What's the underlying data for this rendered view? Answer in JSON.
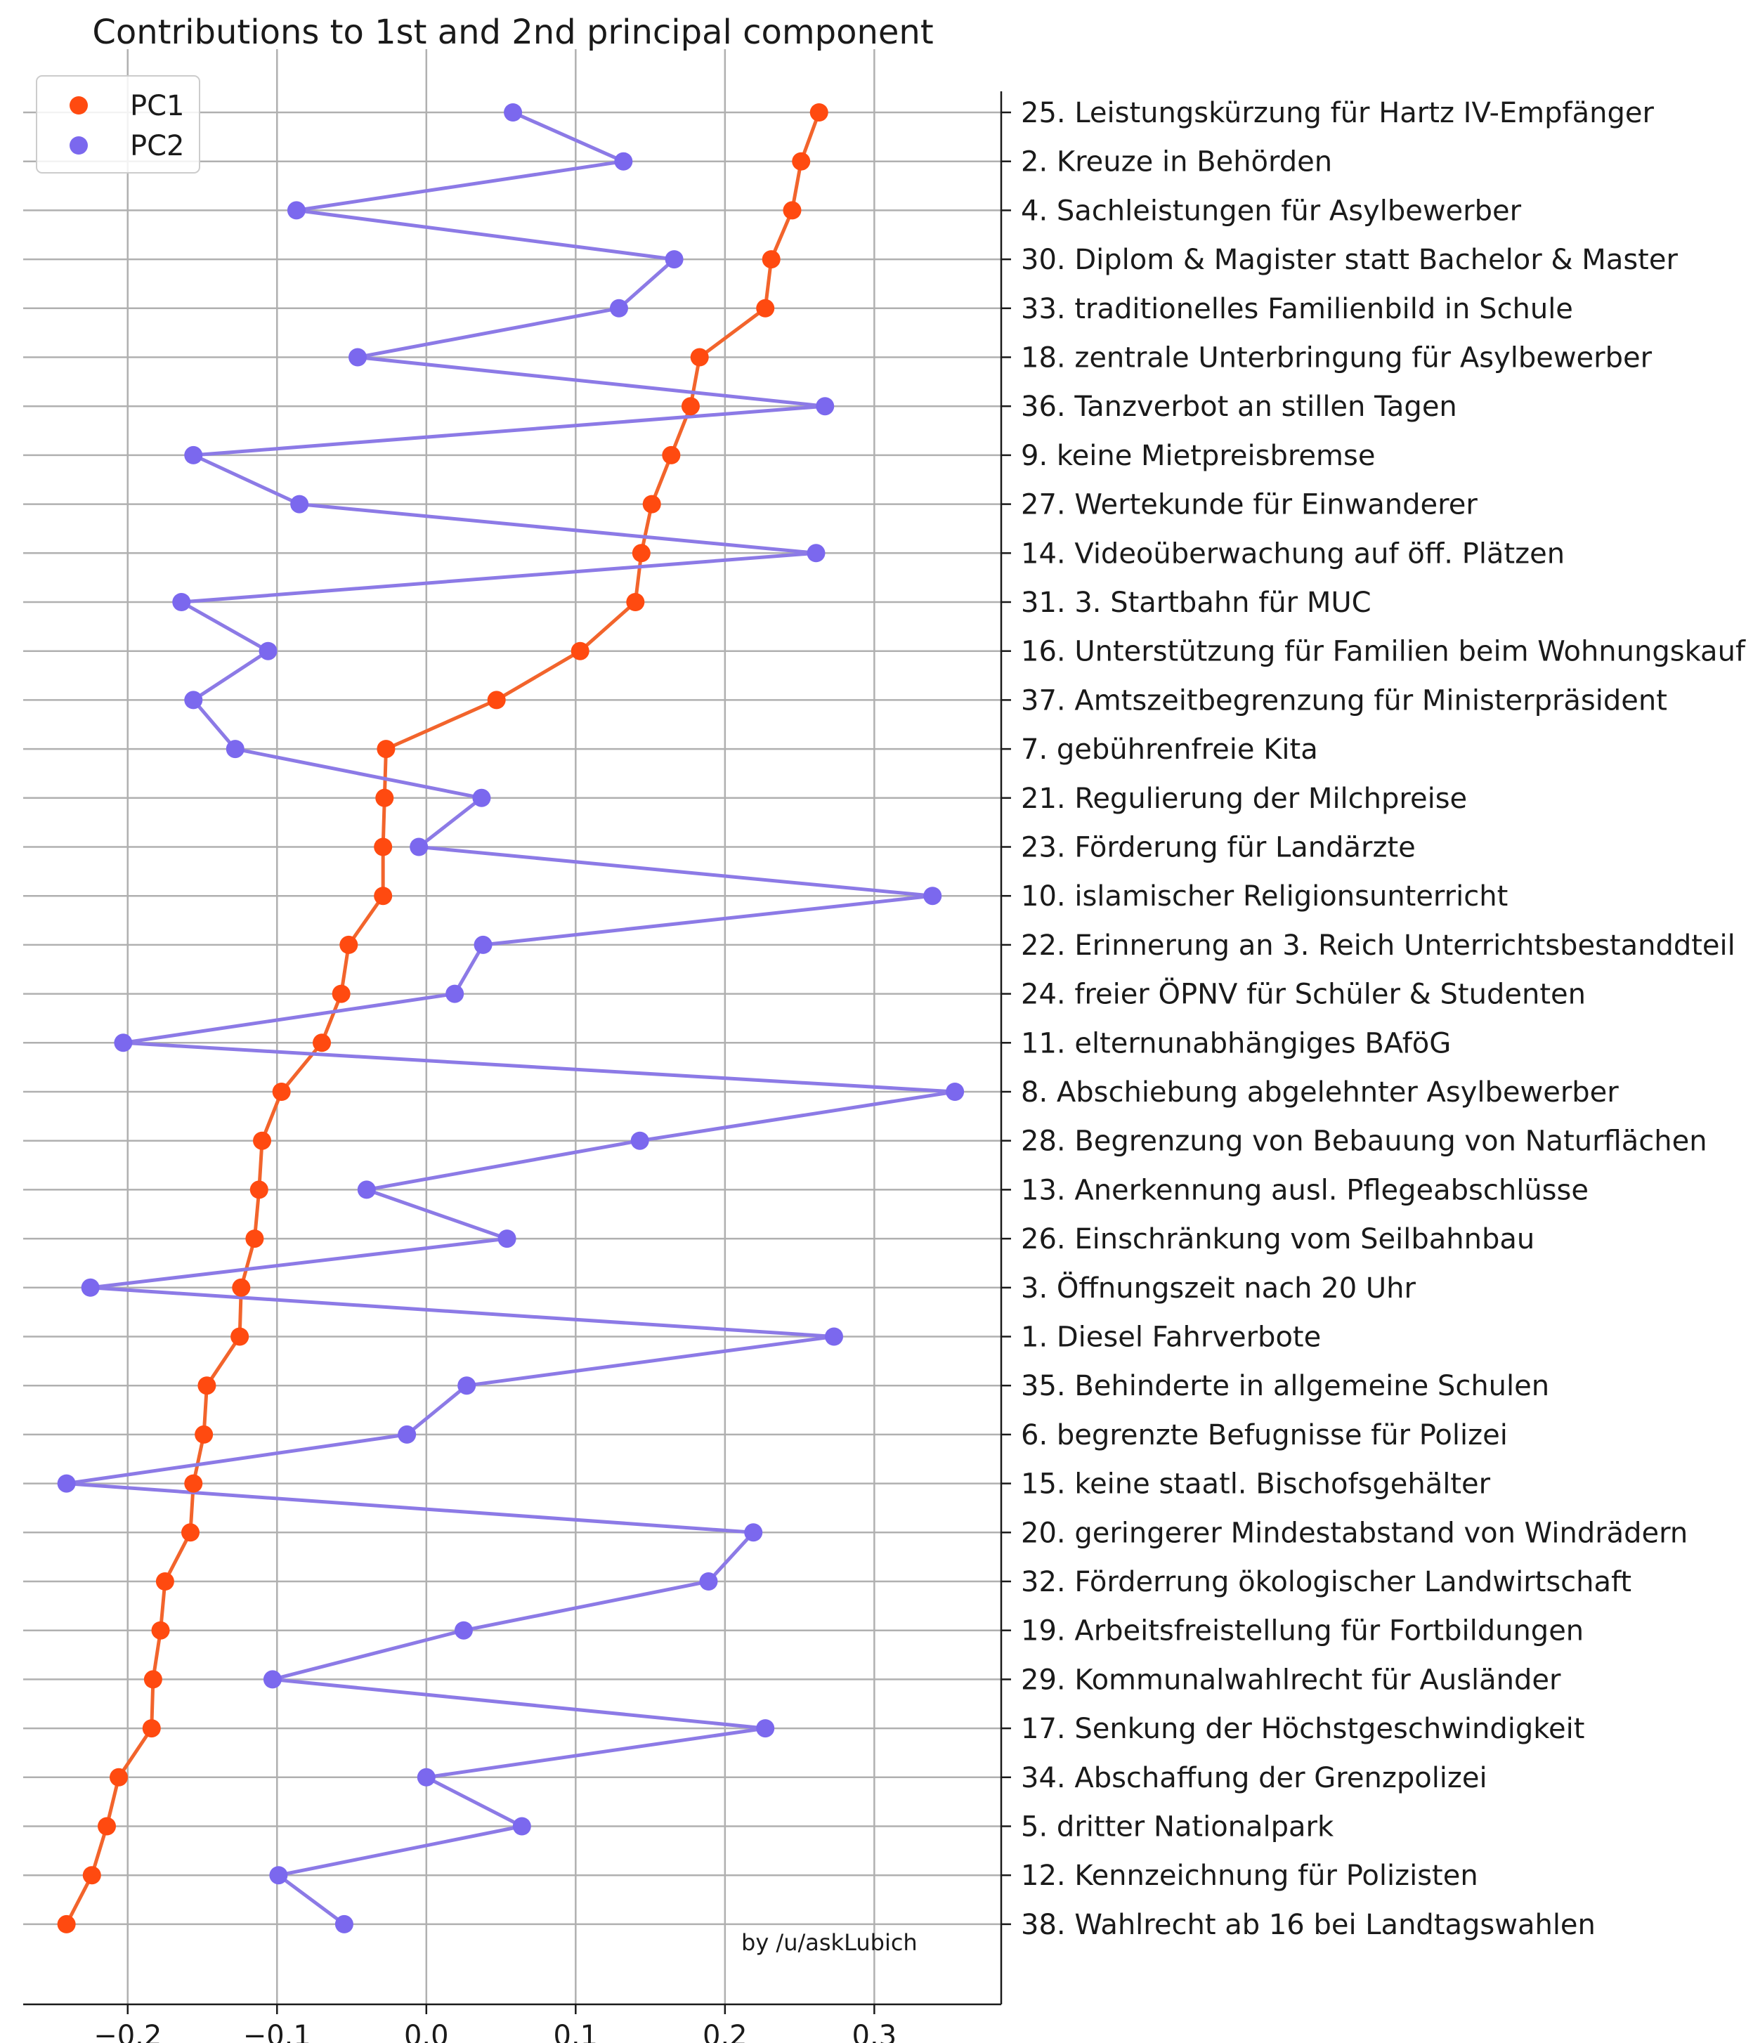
{
  "chart_data": {
    "type": "line",
    "title": "Contributions to 1st and 2nd principal component",
    "xlabel": "",
    "ylabel": "",
    "xlim": [
      -0.27,
      0.385
    ],
    "xticks": [
      -0.2,
      -0.1,
      0.0,
      0.1,
      0.2,
      0.3
    ],
    "xtick_labels": [
      "−0.2",
      "−0.1",
      "0.0",
      "0.1",
      "0.2",
      "0.3"
    ],
    "grid": true,
    "legend_position": "top-left",
    "annotation": "by /u/askLubich",
    "categories": [
      "25. Leistungskürzung für Hartz IV-Empfänger",
      "2. Kreuze in Behörden",
      "4. Sachleistungen für Asylbewerber",
      "30. Diplom & Magister statt Bachelor & Master",
      "33. traditionelles Familienbild in Schule",
      "18. zentrale Unterbringung für Asylbewerber",
      "36. Tanzverbot an stillen Tagen",
      "9. keine Mietpreisbremse",
      "27. Wertekunde für Einwanderer",
      "14. Videoüberwachung auf öff. Plätzen",
      "31. 3. Startbahn für MUC",
      "16. Unterstützung für Familien beim Wohnungskauf",
      "37. Amtszeitbegrenzung für Ministerpräsident",
      "7. gebührenfreie Kita",
      "21. Regulierung der Milchpreise",
      "23. Förderung für Landärzte",
      "10. islamischer Religionsunterricht",
      "22. Erinnerung an 3. Reich Unterrichtsbestanddteil",
      "24. freier ÖPNV für Schüler & Studenten",
      "11. elternunabhängiges BAföG",
      "8. Abschiebung abgelehnter Asylbewerber",
      "28. Begrenzung von Bebauung von Naturflächen",
      "13. Anerkennung ausl. Pflegeabschlüsse",
      "26. Einschränkung vom Seilbahnbau",
      "3. Öffnungszeit nach 20 Uhr",
      "1. Diesel Fahrverbote",
      "35. Behinderte in allgemeine Schulen",
      "6. begrenzte Befugnisse für Polizei",
      "15. keine staatl. Bischofsgehälter",
      "20. geringerer Mindestabstand von Windrädern",
      "32. Förderrung ökologischer Landwirtschaft",
      "19. Arbeitsfreistellung für Fortbildungen",
      "29. Kommunalwahlrecht für Ausländer",
      "17. Senkung der Höchstgeschwindigkeit",
      "34. Abschaffung der Grenzpolizei",
      "5. dritter Nationalpark",
      "12. Kennzeichnung für Polizisten",
      "38. Wahlrecht ab 16 bei Landtagswahlen"
    ],
    "series": [
      {
        "name": "PC1",
        "color": "#ff4a10",
        "line_color": "#f2642c",
        "values": [
          0.263,
          0.251,
          0.245,
          0.231,
          0.227,
          0.183,
          0.177,
          0.164,
          0.151,
          0.144,
          0.14,
          0.103,
          0.047,
          -0.027,
          -0.028,
          -0.029,
          -0.029,
          -0.052,
          -0.057,
          -0.07,
          -0.097,
          -0.11,
          -0.112,
          -0.115,
          -0.124,
          -0.125,
          -0.147,
          -0.149,
          -0.156,
          -0.158,
          -0.175,
          -0.178,
          -0.183,
          -0.184,
          -0.206,
          -0.214,
          -0.224,
          -0.241
        ]
      },
      {
        "name": "PC2",
        "color": "#7b68ee",
        "line_color": "#8c7ae6",
        "values": [
          0.058,
          0.132,
          -0.087,
          0.166,
          0.129,
          -0.046,
          0.267,
          -0.156,
          -0.085,
          0.261,
          -0.164,
          -0.106,
          -0.156,
          -0.128,
          0.037,
          -0.005,
          0.339,
          0.038,
          0.019,
          -0.203,
          0.354,
          0.143,
          -0.04,
          0.054,
          -0.225,
          0.273,
          0.027,
          -0.013,
          -0.241,
          0.219,
          0.189,
          0.025,
          -0.103,
          0.227,
          0.0,
          0.064,
          -0.099,
          -0.055
        ]
      }
    ]
  }
}
